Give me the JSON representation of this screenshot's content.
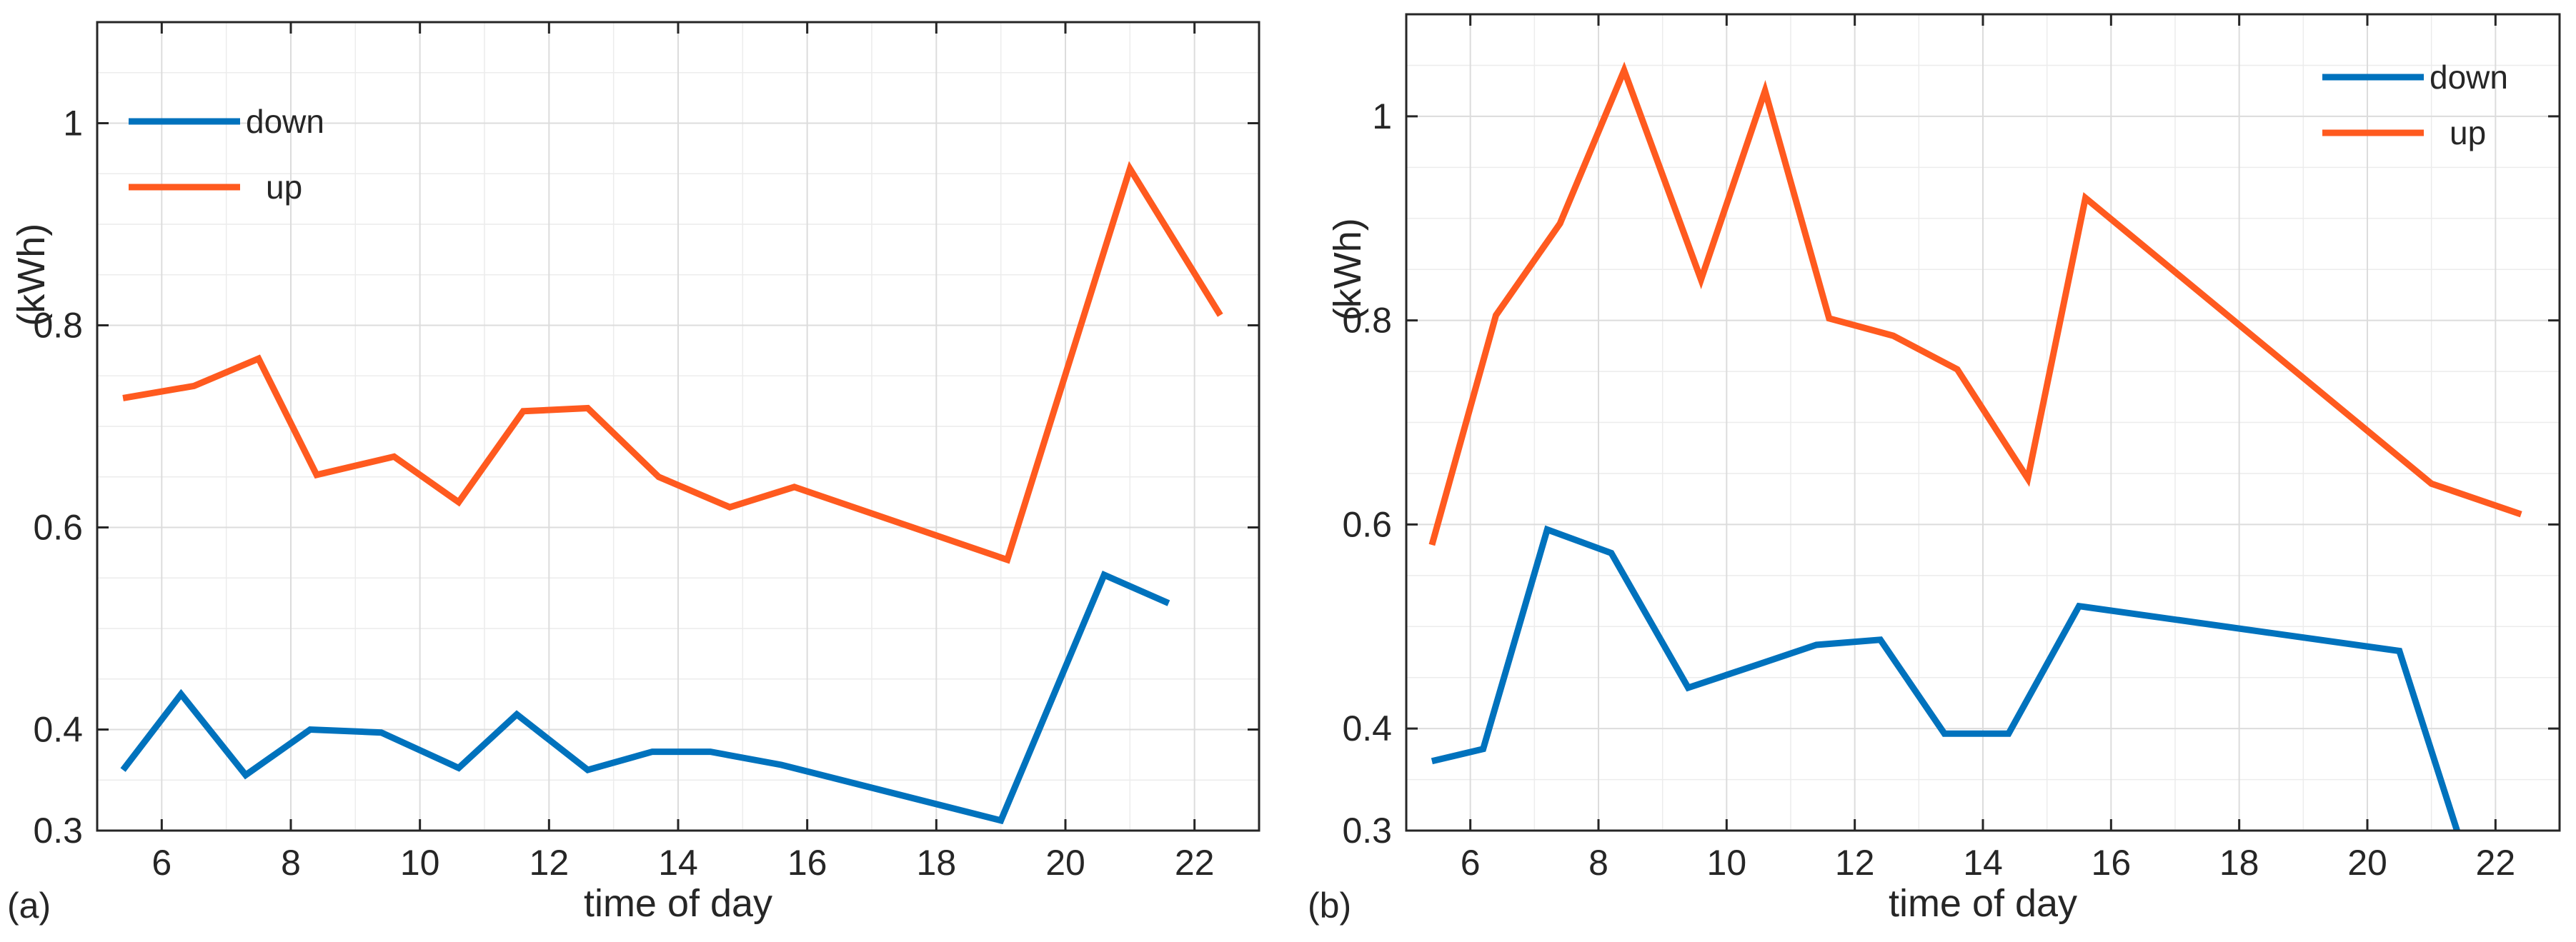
{
  "figure": {
    "panels_count": 2,
    "colors": {
      "down": "#0072BD",
      "up": "#FF5A1F",
      "axis": "#262626",
      "grid": "#dcdcdc"
    }
  },
  "chart_data": [
    {
      "type": "line",
      "panel_label": "(a)",
      "title": "",
      "xlabel": "time of day",
      "ylabel": "(kWh)",
      "xlim": [
        5.0,
        23.0
      ],
      "ylim": [
        0.3,
        1.1
      ],
      "xticks": [
        6,
        8,
        10,
        12,
        14,
        16,
        18,
        20,
        22
      ],
      "xtick_labels": [
        "6",
        "8",
        "10",
        "12",
        "14",
        "16",
        "18",
        "20",
        "22"
      ],
      "yticks": [
        0.3,
        0.4,
        0.6,
        0.8,
        1.0
      ],
      "ytick_labels": [
        "0.3",
        "0.4",
        "0.6",
        "0.8",
        "1"
      ],
      "grid": true,
      "legend_placement": "top-left",
      "series": [
        {
          "name": "down",
          "legend_label": "down",
          "color": "#0072BD",
          "x": [
            5.4,
            6.3,
            7.3,
            8.3,
            9.4,
            10.6,
            11.5,
            12.6,
            13.6,
            14.5,
            15.6,
            19.0,
            20.6,
            21.6
          ],
          "y": [
            0.36,
            0.435,
            0.355,
            0.4,
            0.397,
            0.362,
            0.415,
            0.36,
            0.378,
            0.378,
            0.365,
            0.31,
            0.553,
            0.525
          ]
        },
        {
          "name": "up",
          "legend_label": "up",
          "color": "#FF5A1F",
          "x": [
            5.4,
            6.5,
            7.5,
            8.4,
            9.6,
            10.6,
            11.6,
            12.6,
            13.7,
            14.8,
            15.8,
            19.1,
            21.0,
            22.4
          ],
          "y": [
            0.728,
            0.74,
            0.767,
            0.652,
            0.67,
            0.625,
            0.715,
            0.718,
            0.65,
            0.62,
            0.64,
            0.568,
            0.955,
            0.81
          ]
        }
      ]
    },
    {
      "type": "line",
      "panel_label": "(b)",
      "title": "",
      "xlabel": "time of day",
      "ylabel": "(kWh)",
      "xlim": [
        5.0,
        23.0
      ],
      "ylim": [
        0.3,
        1.1
      ],
      "xticks": [
        6,
        8,
        10,
        12,
        14,
        16,
        18,
        20,
        22
      ],
      "xtick_labels": [
        "6",
        "8",
        "10",
        "12",
        "14",
        "16",
        "18",
        "20",
        "22"
      ],
      "yticks": [
        0.3,
        0.4,
        0.6,
        0.8,
        1.0
      ],
      "ytick_labels": [
        "0.3",
        "0.4",
        "0.6",
        "0.8",
        "1"
      ],
      "grid": true,
      "legend_placement": "top-right",
      "series": [
        {
          "name": "down",
          "legend_label": "down",
          "color": "#0072BD",
          "x": [
            5.4,
            6.2,
            7.2,
            8.2,
            9.4,
            10.5,
            11.4,
            12.4,
            13.4,
            14.4,
            15.5,
            20.5,
            21.4
          ],
          "y": [
            0.368,
            0.38,
            0.595,
            0.572,
            0.44,
            0.463,
            0.482,
            0.487,
            0.395,
            0.395,
            0.52,
            0.476,
            0.3
          ]
        },
        {
          "name": "up",
          "legend_label": "up",
          "color": "#FF5A1F",
          "x": [
            5.4,
            6.4,
            7.4,
            8.4,
            9.6,
            10.6,
            11.6,
            12.6,
            13.6,
            14.7,
            15.6,
            21.0,
            22.4
          ],
          "y": [
            0.58,
            0.805,
            0.895,
            1.045,
            0.84,
            1.025,
            0.802,
            0.785,
            0.752,
            0.645,
            0.92,
            0.64,
            0.61
          ]
        }
      ]
    }
  ]
}
